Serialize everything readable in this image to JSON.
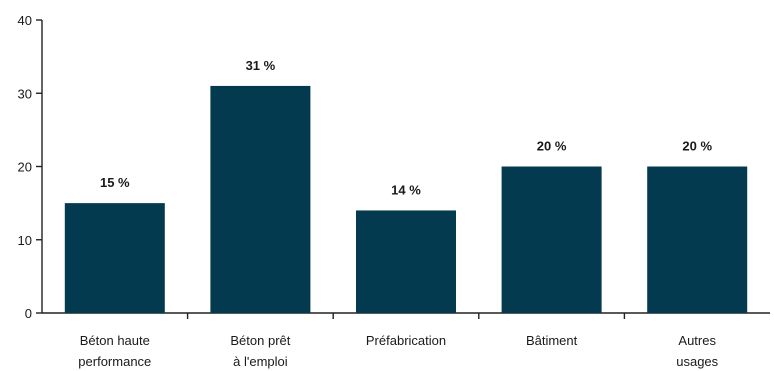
{
  "chart_data": {
    "type": "bar",
    "categories": [
      [
        "Béton haute",
        "performance"
      ],
      [
        "Béton prêt",
        "à l'emploi"
      ],
      [
        "Préfabrication"
      ],
      [
        "Bâtiment"
      ],
      [
        "Autres",
        "usages"
      ]
    ],
    "values": [
      15,
      31,
      14,
      20,
      20
    ],
    "data_labels": [
      "15 %",
      "31 %",
      "14 %",
      "20 %",
      "20 %"
    ],
    "yticks": [
      0,
      10,
      20,
      30,
      40
    ],
    "ylim": [
      0,
      40
    ],
    "title": "",
    "xlabel": "",
    "ylabel": "",
    "grid": false,
    "bar_color": "#043a4f"
  }
}
